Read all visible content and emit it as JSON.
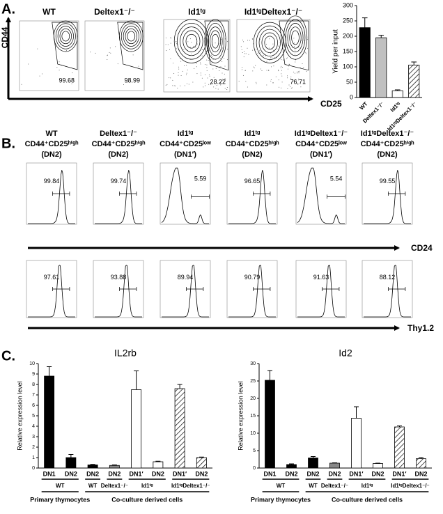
{
  "panel_labels": [
    "A.",
    "B.",
    "C."
  ],
  "flow_plots": {
    "y_label": "CD44",
    "x_label": "CD25",
    "plots": [
      {
        "label": "WT",
        "percent": 99.68
      },
      {
        "label": "Deltex1⁻/⁻",
        "percent": 98.99
      },
      {
        "label": "Id1ᵗᵍ",
        "percent": 28.22
      },
      {
        "label": "Id1ᵗᵍDeltex1⁻/⁻",
        "percent": 76.71
      }
    ]
  },
  "histograms": {
    "columns": [
      {
        "lines": [
          "WT",
          "CD44⁺CD25ʰⁱᵍʰ",
          "(DN2)"
        ]
      },
      {
        "lines": [
          "Deltex1⁻/⁻",
          "CD44⁺CD25ʰⁱᵍʰ",
          "(DN2)"
        ]
      },
      {
        "lines": [
          "Id1ᵗᵍ",
          "CD44⁺CD25ˡᵒʷ",
          "(DN1′)"
        ]
      },
      {
        "lines": [
          "Id1ᵗᵍ",
          "CD44⁺CD25ʰⁱᵍʰ",
          "(DN2)"
        ]
      },
      {
        "lines": [
          "Id1ᵗᵍDeltex1⁻/⁻",
          "CD44⁺CD25ˡᵒʷ",
          "(DN1′)"
        ]
      },
      {
        "lines": [
          "Id1ᵗᵍDeltex1⁻/⁻",
          "CD44⁺CD25ʰⁱᵍʰ",
          "(DN2)"
        ]
      }
    ],
    "rows": [
      {
        "marker": "CD24",
        "percents": [
          99.84,
          99.74,
          5.59,
          96.65,
          5.54,
          99.55
        ]
      },
      {
        "marker": "Thy1.2",
        "percents": [
          97.61,
          93.88,
          89.94,
          90.79,
          91.63,
          88.12
        ]
      }
    ]
  },
  "chart_data": [
    {
      "type": "bar",
      "y_label": "Yield per input",
      "categories": [
        "WT",
        "Deltex1⁻/⁻",
        "Id1ᵗᵍ",
        "Id1ᵗᵍDeltex1⁻/⁻"
      ],
      "values": [
        228,
        195,
        22,
        106
      ],
      "errors": [
        32,
        8,
        3,
        10
      ],
      "colors": [
        "#000000",
        "#c0c0c0",
        "#ffffff",
        "#ffffff"
      ],
      "hatched": [
        false,
        false,
        false,
        true
      ],
      "ylim": [
        0,
        300
      ],
      "yticks": [
        0,
        50,
        100,
        150,
        200,
        250,
        300
      ]
    },
    {
      "type": "bar",
      "title": "IL2rb",
      "y_label": "Relative expression level",
      "categories": [
        "DN1",
        "DN2",
        "DN2",
        "DN2",
        "DN1′",
        "DN2",
        "DN1′",
        "DN2"
      ],
      "values": [
        8.8,
        1.0,
        0.3,
        0.25,
        7.5,
        0.6,
        7.6,
        1.0
      ],
      "errors": [
        0.9,
        0.3,
        0.05,
        0.05,
        1.8,
        0.05,
        0.4,
        0.05
      ],
      "colors": [
        "#000000",
        "#000000",
        "#000000",
        "#888888",
        "#ffffff",
        "#ffffff",
        "#ffffff",
        "#ffffff"
      ],
      "hatched": [
        false,
        false,
        false,
        false,
        false,
        false,
        true,
        true
      ],
      "groups": [
        "WT",
        "WT",
        "Deltex1⁻/⁻",
        "Id1ᵗᵍ",
        "Id1ᵗᵍDeltex1⁻/⁻"
      ],
      "supergroups": [
        "Primary thymocytes",
        "Co-culture derived cells"
      ],
      "ylim": [
        0,
        10
      ],
      "yticks": [
        0,
        1,
        2,
        3,
        4,
        5,
        6,
        7,
        8,
        9,
        10
      ]
    },
    {
      "type": "bar",
      "title": "Id2",
      "y_label": "Relative expression level",
      "categories": [
        "DN1",
        "DN2",
        "DN2",
        "DN2",
        "DN1′",
        "DN2",
        "DN1′",
        "DN2"
      ],
      "values": [
        25.2,
        1.0,
        2.9,
        1.4,
        14.3,
        1.3,
        11.8,
        2.7
      ],
      "errors": [
        2.8,
        0.2,
        0.4,
        0.1,
        3.3,
        0.1,
        0.3,
        0.3
      ],
      "colors": [
        "#000000",
        "#000000",
        "#000000",
        "#888888",
        "#ffffff",
        "#ffffff",
        "#ffffff",
        "#ffffff"
      ],
      "hatched": [
        false,
        false,
        false,
        false,
        false,
        false,
        true,
        true
      ],
      "groups": [
        "WT",
        "WT",
        "Deltex1⁻/⁻",
        "Id1ᵗᵍ",
        "Id1ᵗᵍDeltex1⁻/⁻"
      ],
      "supergroups": [
        "Primary thymocytes",
        "Co-culture derived cells"
      ],
      "ylim": [
        0,
        30
      ],
      "yticks": [
        0,
        5,
        10,
        15,
        20,
        25,
        30
      ]
    }
  ]
}
